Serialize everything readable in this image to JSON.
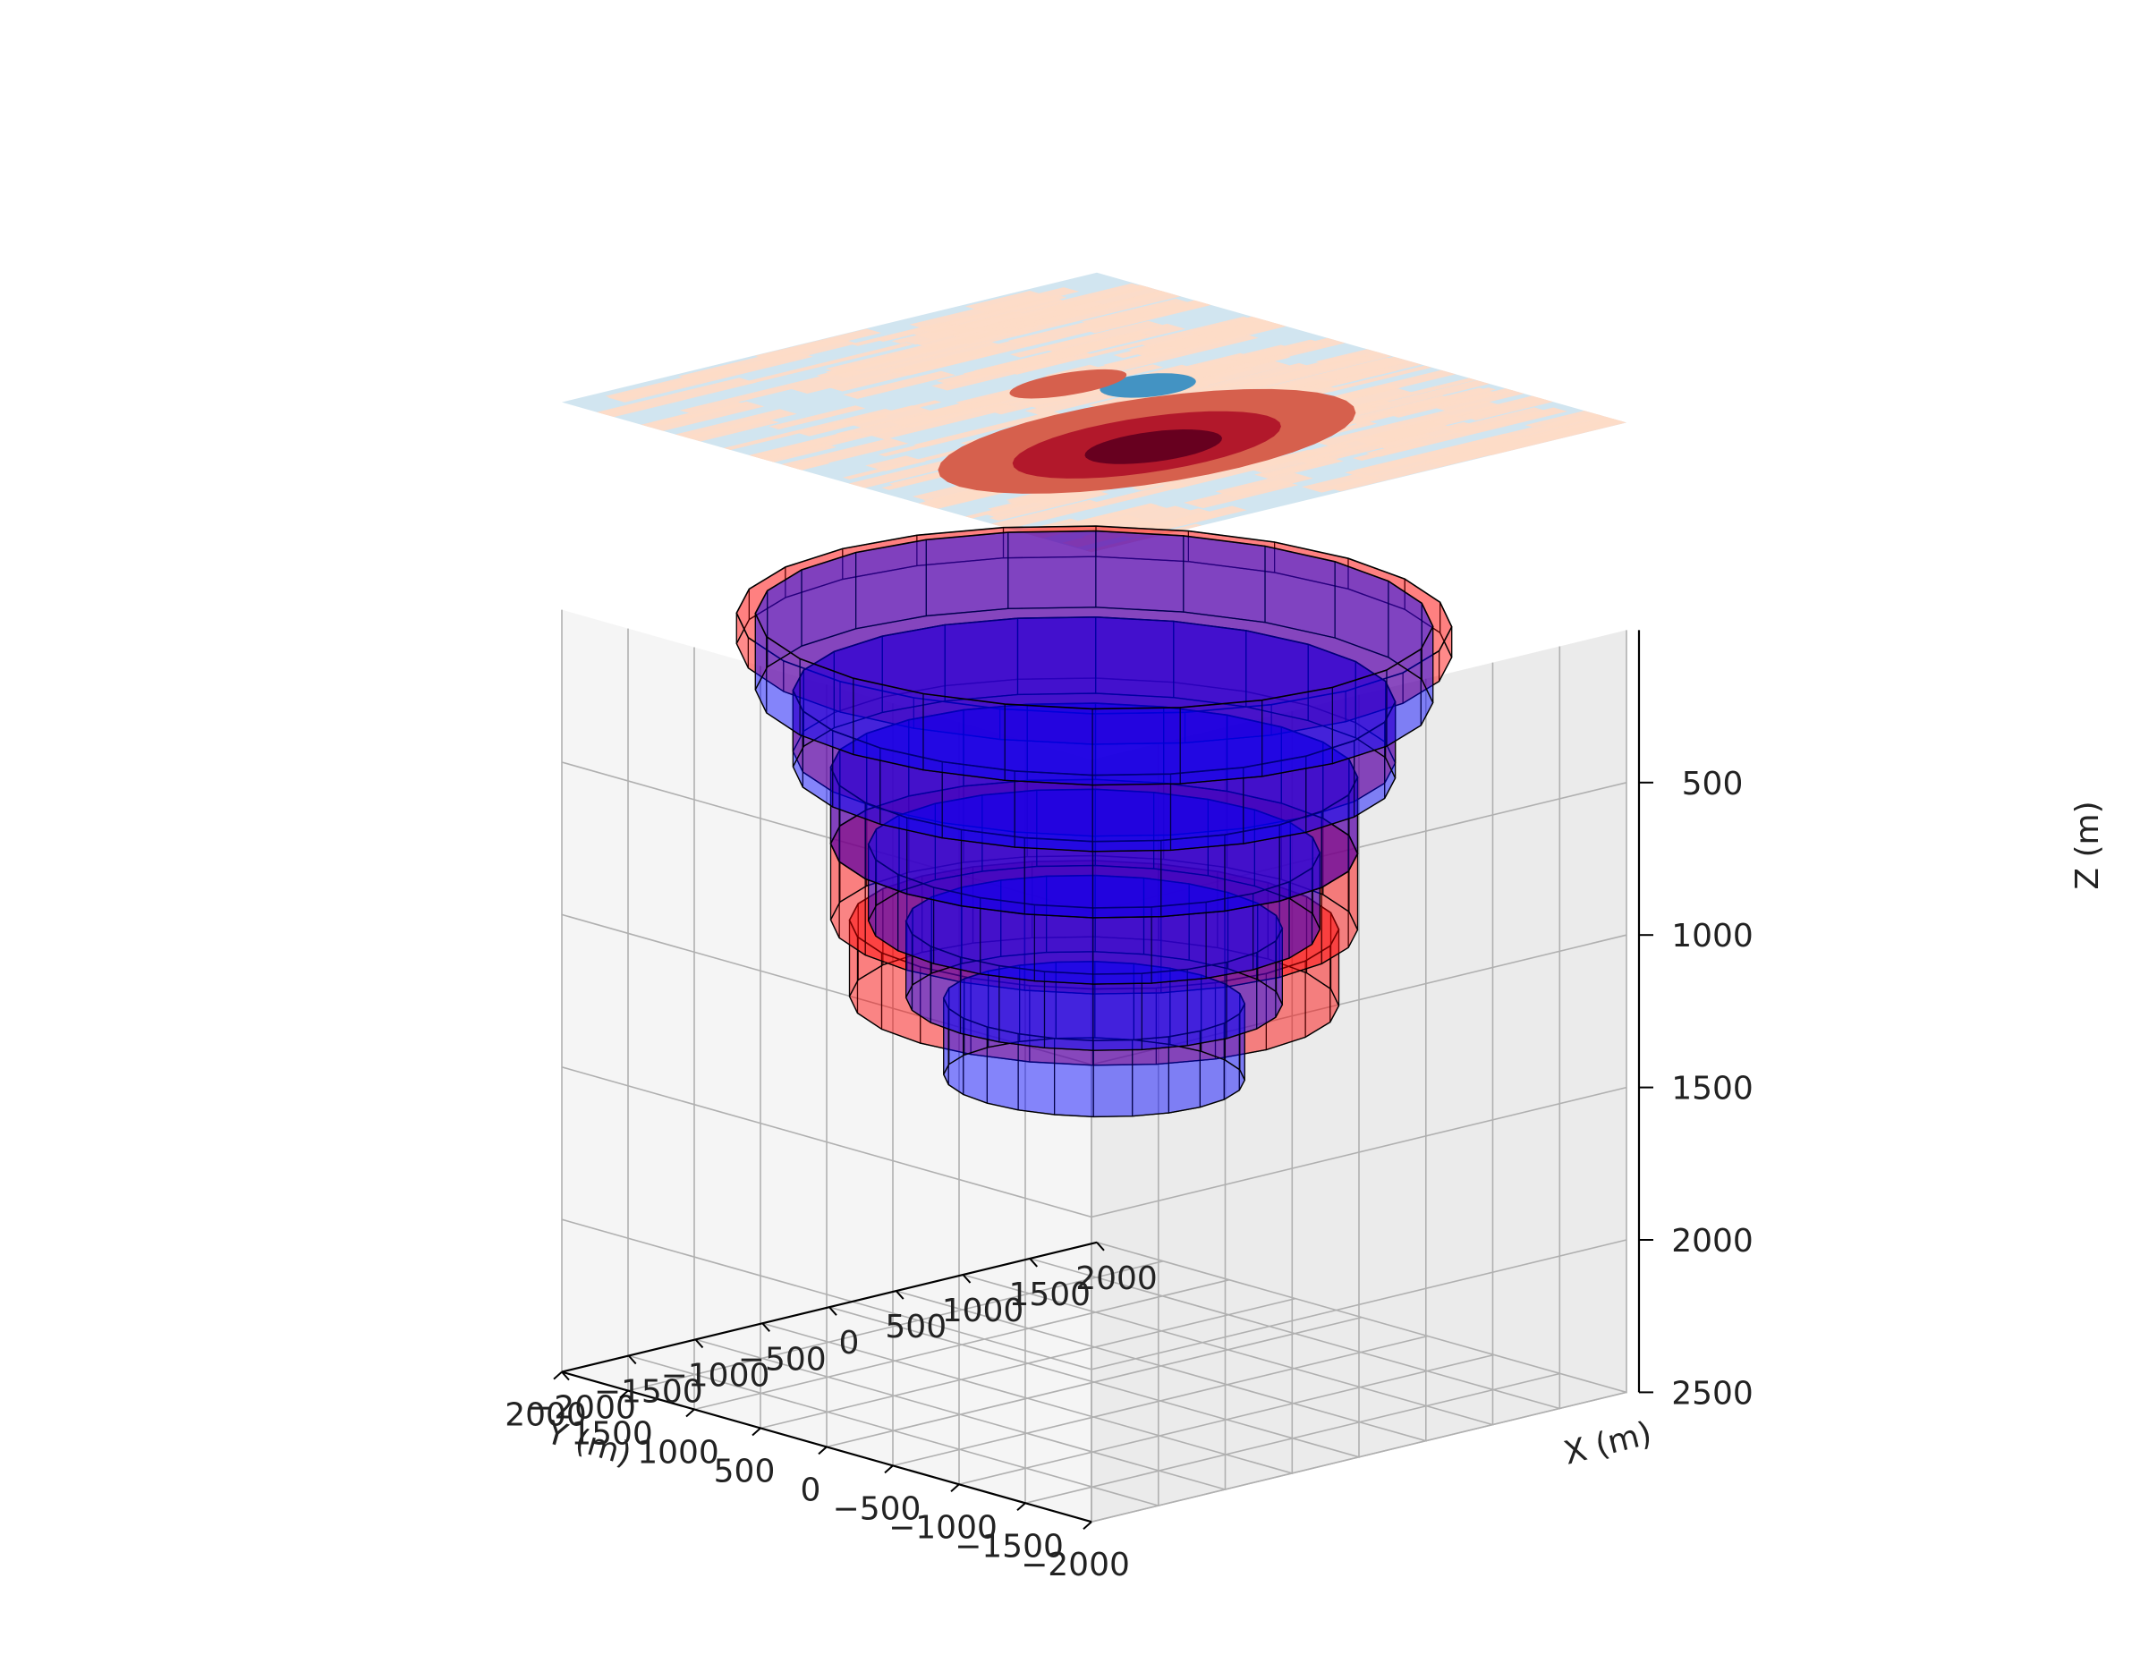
{
  "chart_data": {
    "type": "3d-surface-with-stacked-cylinders",
    "title": "",
    "xlabel": "X (m)",
    "ylabel": "Y (m)",
    "zlabel": "Z (m)",
    "xlim": [
      -2000,
      2000
    ],
    "ylim": [
      -2000,
      2000
    ],
    "zlim": [
      2500,
      0
    ],
    "x_ticks": [
      -2000,
      -1500,
      -1000,
      -500,
      0,
      500,
      1000,
      1500,
      2000
    ],
    "y_ticks": [
      -2000,
      -1500,
      -1000,
      -500,
      0,
      500,
      1000,
      1500,
      2000
    ],
    "z_ticks": [
      500,
      1000,
      1500,
      2000,
      2500
    ],
    "x_tick_labels": [
      "−2000",
      "−1500",
      "−1000",
      "−500",
      "0",
      "500",
      "1000",
      "1500",
      "2000"
    ],
    "y_tick_labels": [
      "−2000",
      "−1500",
      "−1000",
      "−500",
      "0",
      "500",
      "1000",
      "1500",
      "2000"
    ],
    "z_tick_labels": [
      "500",
      "1000",
      "1500",
      "2000",
      "2500"
    ],
    "grid": true,
    "surface": {
      "z": 0,
      "colormap": "RdBu_r",
      "colors": {
        "background": "#d1e5f0",
        "light_red": "#fddbc7",
        "red": "#d6604d",
        "dark_red": "#b2182b",
        "darkest_red": "#67001f",
        "blue": "#4393c3"
      }
    },
    "cylinders": {
      "series": [
        {
          "color": "#ff0000",
          "layers": [
            {
              "z_top": 0,
              "z_bottom": 100,
              "radius": 1900
            },
            {
              "z_top": 250,
              "z_bottom": 450,
              "radius": 1600
            },
            {
              "z_top": 500,
              "z_bottom": 750,
              "radius": 1400
            },
            {
              "z_top": 750,
              "z_bottom": 1000,
              "radius": 1400
            },
            {
              "z_top": 1000,
              "z_bottom": 1250,
              "radius": 1300
            }
          ]
        },
        {
          "color": "#0000ff",
          "layers": [
            {
              "z_top": 0,
              "z_bottom": 250,
              "radius": 1800
            },
            {
              "z_top": 250,
              "z_bottom": 500,
              "radius": 1600
            },
            {
              "z_top": 500,
              "z_bottom": 750,
              "radius": 1400
            },
            {
              "z_top": 750,
              "z_bottom": 1000,
              "radius": 1200
            },
            {
              "z_top": 1000,
              "z_bottom": 1250,
              "radius": 1000
            },
            {
              "z_top": 1250,
              "z_bottom": 1500,
              "radius": 800
            }
          ]
        }
      ]
    }
  }
}
